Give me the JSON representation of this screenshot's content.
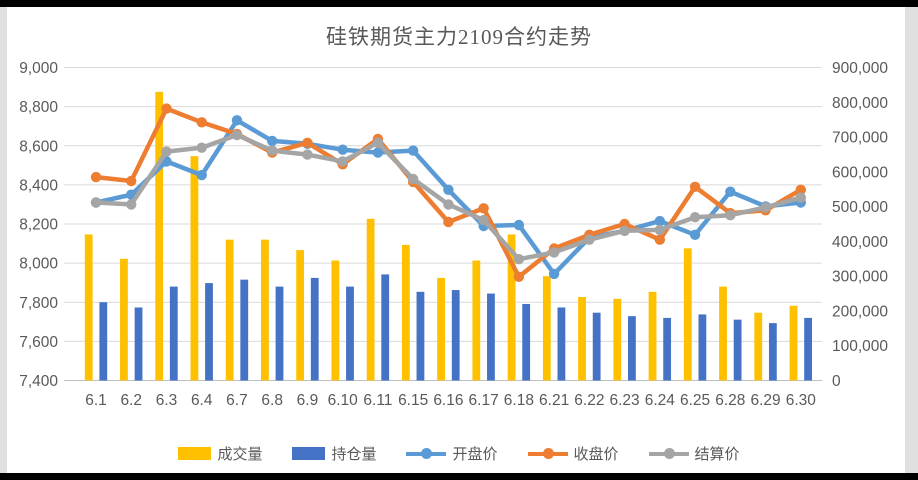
{
  "colors": {
    "volume": "#FFC000",
    "open_interest": "#4472C4",
    "open_price": "#5B9BD5",
    "close_price": "#ED7D31",
    "settle_price": "#A5A5A5",
    "text": "#595959",
    "gridline": "#D9D9D9",
    "axis_line": "#BFBFBF",
    "card_bg": "#FFFFFF",
    "edge_bar": "#000000"
  },
  "chart_data": {
    "type": "combo",
    "title": "硅铁期货主力2109合约走势",
    "categories": [
      "6.1",
      "6.2",
      "6.3",
      "6.4",
      "6.7",
      "6.8",
      "6.9",
      "6.10",
      "6.11",
      "6.15",
      "6.16",
      "6.17",
      "6.18",
      "6.21",
      "6.22",
      "6.23",
      "6.24",
      "6.25",
      "6.28",
      "6.29",
      "6.30"
    ],
    "series": [
      {
        "key": "volume",
        "name": "成交量",
        "type": "bar",
        "axis": "right",
        "color": "#FFC000",
        "values": [
          420000,
          350000,
          830000,
          645000,
          405000,
          405000,
          375000,
          345000,
          465000,
          390000,
          295000,
          345000,
          420000,
          300000,
          240000,
          235000,
          255000,
          380000,
          270000,
          195000,
          215000
        ]
      },
      {
        "key": "open_interest",
        "name": "持仓量",
        "type": "bar",
        "axis": "right",
        "color": "#4472C4",
        "values": [
          225000,
          210000,
          270000,
          280000,
          290000,
          270000,
          295000,
          270000,
          305000,
          255000,
          260000,
          250000,
          220000,
          210000,
          195000,
          185000,
          180000,
          190000,
          175000,
          165000,
          180000
        ]
      },
      {
        "key": "open_price",
        "name": "开盘价",
        "type": "line",
        "axis": "left",
        "color": "#5B9BD5",
        "values": [
          8310,
          8350,
          8520,
          8450,
          8730,
          8625,
          8610,
          8580,
          8565,
          8575,
          8375,
          8190,
          8195,
          7945,
          8130,
          8165,
          8215,
          8145,
          8365,
          8290,
          8310
        ]
      },
      {
        "key": "close_price",
        "name": "收盘价",
        "type": "line",
        "axis": "left",
        "color": "#ED7D31",
        "values": [
          8440,
          8420,
          8790,
          8720,
          8660,
          8565,
          8615,
          8505,
          8635,
          8415,
          8210,
          8280,
          7930,
          8075,
          8145,
          8200,
          8120,
          8390,
          8255,
          8270,
          8375
        ]
      },
      {
        "key": "settle_price",
        "name": "结算价",
        "type": "line",
        "axis": "left",
        "color": "#A5A5A5",
        "values": [
          8310,
          8300,
          8570,
          8590,
          8655,
          8575,
          8555,
          8520,
          8615,
          8430,
          8300,
          8220,
          8020,
          8055,
          8120,
          8165,
          8170,
          8235,
          8245,
          8285,
          8335
        ]
      }
    ],
    "left_axis": {
      "min": 7400,
      "max": 9000,
      "step": 200,
      "ticks": [
        "7,400",
        "7,600",
        "7,800",
        "8,000",
        "8,200",
        "8,400",
        "8,600",
        "8,800",
        "9,000"
      ]
    },
    "right_axis": {
      "min": 0,
      "max": 900000,
      "step": 100000,
      "ticks": [
        "0",
        "100,000",
        "200,000",
        "300,000",
        "400,000",
        "500,000",
        "600,000",
        "700,000",
        "800,000",
        "900,000"
      ]
    },
    "grid": true,
    "legend_position": "bottom"
  }
}
